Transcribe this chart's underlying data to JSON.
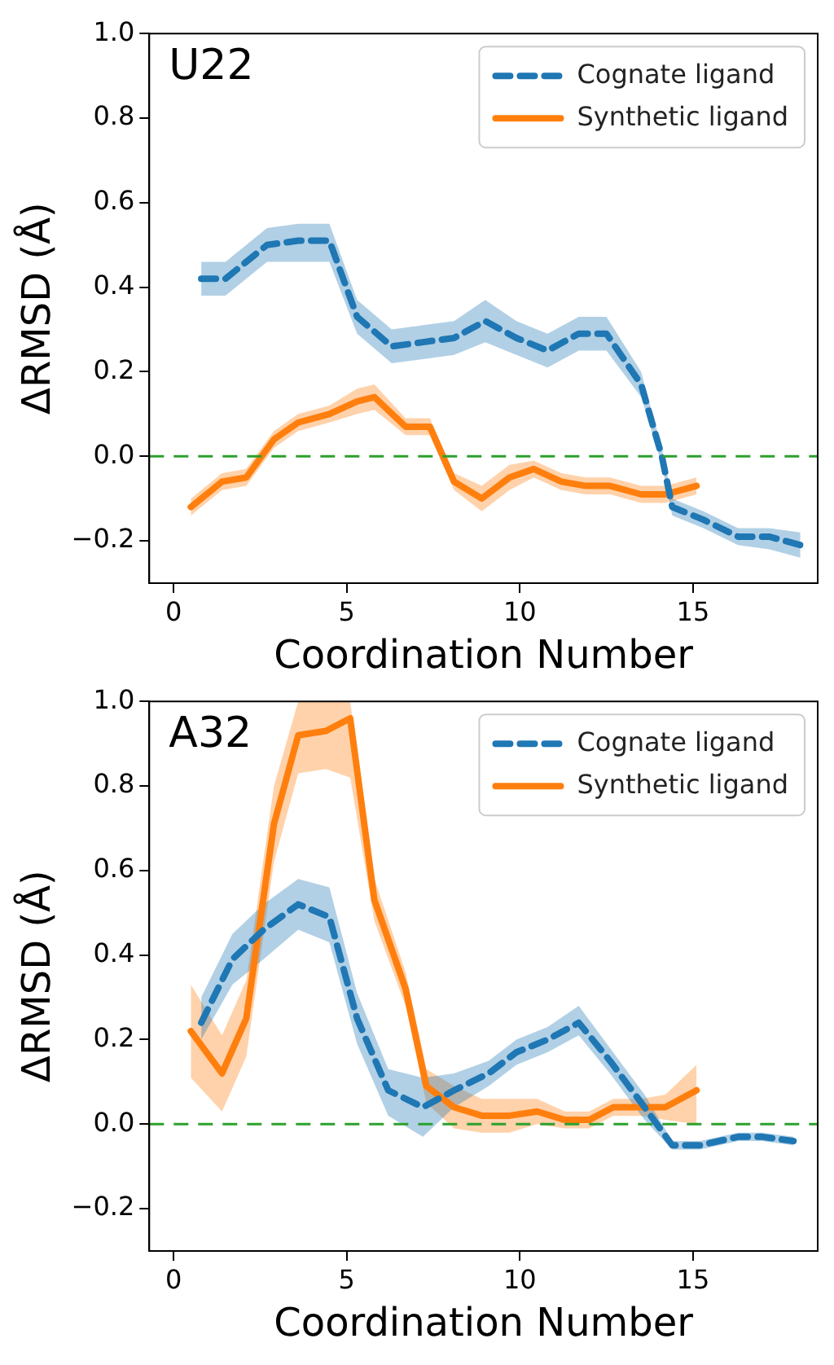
{
  "chart_data": [
    {
      "type": "line",
      "xlabel": "Coordination Number",
      "ylabel": "ΔRMSD (Å)",
      "annotations": [
        "U22"
      ],
      "xlim": [
        -0.7,
        18.6
      ],
      "ylim": [
        -0.3,
        1.0
      ],
      "xticks": [
        0,
        5,
        10,
        15
      ],
      "yticks": [
        {
          "value": -0.2,
          "label": "−0.2"
        },
        {
          "value": 0,
          "label": "0.0"
        },
        {
          "value": 0.2,
          "label": "0.2"
        },
        {
          "value": 0.4,
          "label": "0.4"
        },
        {
          "value": 0.6,
          "label": "0.6"
        },
        {
          "value": 0.8,
          "label": "0.8"
        },
        {
          "value": 1.0,
          "label": "1.0"
        }
      ],
      "grid": false,
      "legend": "top right",
      "marker": "none",
      "ref_lines": [
        {
          "axis": "y",
          "value": 0,
          "color": "#2ca02c",
          "line_style": "dashed"
        }
      ],
      "series": [
        {
          "name": "Cognate ligand",
          "color": "#1f77b4",
          "line_style": "dashed",
          "x": [
            0.8,
            1.5,
            2.7,
            3.6,
            4.5,
            5.3,
            6.3,
            7.2,
            8.1,
            9.0,
            9.9,
            10.8,
            11.7,
            12.5,
            13.5,
            14.1,
            14.4,
            15.3,
            16.3,
            17.2,
            18.1
          ],
          "values": [
            0.42,
            0.42,
            0.5,
            0.51,
            0.51,
            0.33,
            0.26,
            0.27,
            0.28,
            0.32,
            0.28,
            0.25,
            0.29,
            0.29,
            0.17,
            0.0,
            -0.12,
            -0.15,
            -0.19,
            -0.19,
            -0.21
          ],
          "lower": [
            0.38,
            0.38,
            0.46,
            0.46,
            0.46,
            0.29,
            0.22,
            0.23,
            0.24,
            0.27,
            0.24,
            0.21,
            0.25,
            0.25,
            0.14,
            -0.02,
            -0.14,
            -0.17,
            -0.21,
            -0.22,
            -0.24
          ],
          "upper": [
            0.46,
            0.46,
            0.54,
            0.55,
            0.55,
            0.37,
            0.3,
            0.31,
            0.32,
            0.37,
            0.32,
            0.29,
            0.33,
            0.33,
            0.2,
            0.02,
            -0.1,
            -0.13,
            -0.17,
            -0.17,
            -0.18
          ]
        },
        {
          "name": "Synthetic ligand",
          "color": "#ff7f0e",
          "line_style": "solid",
          "x": [
            0.5,
            1.4,
            2.1,
            2.9,
            3.6,
            4.5,
            5.3,
            5.8,
            6.7,
            7.4,
            8.1,
            8.9,
            9.7,
            10.4,
            11.2,
            11.9,
            12.6,
            13.5,
            14.2,
            15.1
          ],
          "values": [
            -0.12,
            -0.06,
            -0.05,
            0.04,
            0.08,
            0.1,
            0.13,
            0.14,
            0.07,
            0.07,
            -0.06,
            -0.1,
            -0.05,
            -0.03,
            -0.06,
            -0.07,
            -0.07,
            -0.09,
            -0.09,
            -0.07
          ],
          "lower": [
            -0.14,
            -0.08,
            -0.07,
            0.02,
            0.06,
            0.08,
            0.1,
            0.11,
            0.05,
            0.05,
            -0.08,
            -0.13,
            -0.08,
            -0.05,
            -0.08,
            -0.09,
            -0.09,
            -0.11,
            -0.11,
            -0.09
          ],
          "upper": [
            -0.1,
            -0.04,
            -0.03,
            0.06,
            0.1,
            0.12,
            0.16,
            0.17,
            0.09,
            0.09,
            -0.04,
            -0.07,
            -0.02,
            -0.01,
            -0.04,
            -0.05,
            -0.05,
            -0.07,
            -0.07,
            -0.05
          ]
        }
      ]
    },
    {
      "type": "line",
      "xlabel": "Coordination Number",
      "ylabel": "ΔRMSD (Å)",
      "annotations": [
        "A32"
      ],
      "xlim": [
        -0.7,
        18.6
      ],
      "ylim": [
        -0.3,
        1.0
      ],
      "xticks": [
        0,
        5,
        10,
        15
      ],
      "yticks": [
        {
          "value": -0.2,
          "label": "−0.2"
        },
        {
          "value": 0,
          "label": "0.0"
        },
        {
          "value": 0.2,
          "label": "0.2"
        },
        {
          "value": 0.4,
          "label": "0.4"
        },
        {
          "value": 0.6,
          "label": "0.6"
        },
        {
          "value": 0.8,
          "label": "0.8"
        },
        {
          "value": 1.0,
          "label": "1.0"
        }
      ],
      "grid": false,
      "legend": "top right",
      "marker": "none",
      "ref_lines": [
        {
          "axis": "y",
          "value": 0,
          "color": "#2ca02c",
          "line_style": "dashed"
        }
      ],
      "series": [
        {
          "name": "Cognate ligand",
          "color": "#1f77b4",
          "line_style": "dashed",
          "x": [
            0.8,
            1.7,
            2.6,
            3.6,
            4.5,
            5.3,
            6.2,
            7.2,
            8.1,
            9.1,
            9.9,
            10.8,
            11.7,
            12.6,
            13.6,
            14.4,
            15.2,
            16.3,
            17.0,
            17.9
          ],
          "values": [
            0.24,
            0.39,
            0.46,
            0.52,
            0.49,
            0.25,
            0.08,
            0.04,
            0.08,
            0.12,
            0.17,
            0.2,
            0.24,
            0.15,
            0.04,
            -0.05,
            -0.05,
            -0.03,
            -0.03,
            -0.04
          ],
          "lower": [
            0.2,
            0.33,
            0.39,
            0.46,
            0.43,
            0.19,
            0.02,
            -0.03,
            0.04,
            0.09,
            0.14,
            0.17,
            0.21,
            0.12,
            0.01,
            -0.06,
            -0.06,
            -0.04,
            -0.04,
            -0.05
          ],
          "upper": [
            0.3,
            0.45,
            0.52,
            0.58,
            0.56,
            0.31,
            0.13,
            0.11,
            0.12,
            0.15,
            0.2,
            0.23,
            0.28,
            0.18,
            0.07,
            -0.04,
            -0.04,
            -0.02,
            -0.02,
            -0.03
          ]
        },
        {
          "name": "Synthetic ligand",
          "color": "#ff7f0e",
          "line_style": "solid",
          "x": [
            0.5,
            1.4,
            2.1,
            2.9,
            3.6,
            4.4,
            5.1,
            5.8,
            6.7,
            7.3,
            8.1,
            8.9,
            9.7,
            10.5,
            11.3,
            12.0,
            12.7,
            13.5,
            14.2,
            15.1
          ],
          "values": [
            0.22,
            0.12,
            0.25,
            0.71,
            0.92,
            0.93,
            0.96,
            0.53,
            0.32,
            0.09,
            0.04,
            0.02,
            0.02,
            0.03,
            0.01,
            0.01,
            0.04,
            0.04,
            0.04,
            0.08
          ],
          "lower": [
            0.11,
            0.03,
            0.16,
            0.62,
            0.83,
            0.84,
            0.82,
            0.48,
            0.28,
            0.05,
            -0.01,
            -0.02,
            -0.02,
            0.0,
            -0.01,
            -0.01,
            0.02,
            0.02,
            0.01,
            0.0
          ],
          "upper": [
            0.33,
            0.21,
            0.34,
            0.8,
            1.0,
            1.0,
            1.0,
            0.58,
            0.36,
            0.13,
            0.09,
            0.06,
            0.06,
            0.06,
            0.03,
            0.03,
            0.06,
            0.06,
            0.07,
            0.14
          ]
        }
      ]
    }
  ]
}
